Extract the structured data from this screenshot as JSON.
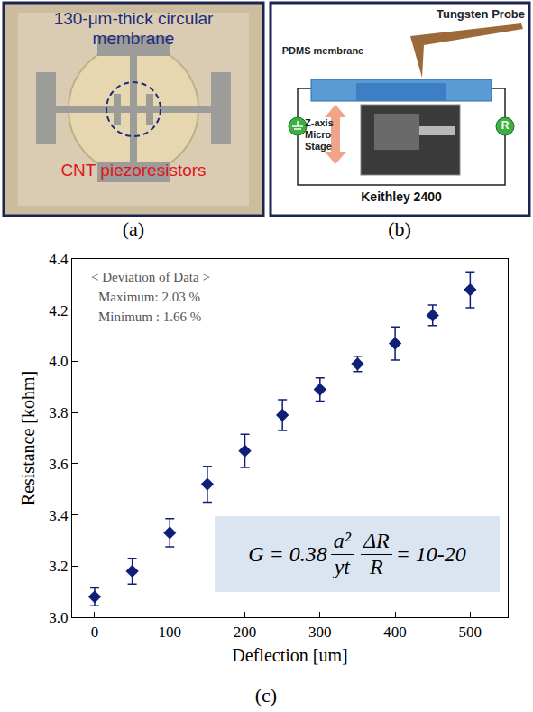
{
  "panel_a": {
    "label": "(a)",
    "membrane_text": "130-μm-thick circular membrane",
    "piezo_text": "CNT piezoresistors"
  },
  "panel_b": {
    "label": "(b)",
    "probe": "Tungsten Probe",
    "membrane": "PDMS membrane",
    "stage": "Z-axis Micro Stage",
    "instrument": "Keithley 2400",
    "meter": "R"
  },
  "panel_c": {
    "label": "(c)",
    "formula": {
      "prefix": "G = 0.38",
      "fractions": [
        {
          "numerator": "a²",
          "denominator": "yt"
        },
        {
          "numerator": "ΔR",
          "denominator": "R"
        }
      ],
      "suffix": "= 10-20"
    }
  },
  "chart_data": {
    "type": "scatter",
    "marker": "diamond",
    "color": "#0f1f78",
    "x_label": "Deflection [um]",
    "y_label": "Resistance [kohm]",
    "annotations": [
      "< Deviation of Data >",
      "Maximum: 2.03 %",
      "Minimum : 1.66 %"
    ],
    "x": [
      0,
      50,
      100,
      150,
      200,
      250,
      300,
      350,
      400,
      450,
      500
    ],
    "values": [
      3.08,
      3.18,
      3.33,
      3.52,
      3.65,
      3.79,
      3.89,
      3.99,
      4.07,
      4.18,
      4.28
    ],
    "errors": [
      0.035,
      0.05,
      0.055,
      0.07,
      0.065,
      0.06,
      0.045,
      0.03,
      0.065,
      0.04,
      0.07
    ],
    "xlim": [
      -30,
      550
    ],
    "xticks": [
      0,
      100,
      200,
      300,
      400,
      500
    ],
    "ylim": [
      3.0,
      4.4
    ],
    "yticks": [
      {
        "value": 3.0,
        "label": "3.0"
      },
      3.2,
      3.4,
      3.6,
      3.8,
      {
        "value": 4.0,
        "label": "4.0"
      },
      4.2,
      4.4
    ],
    "grid": false
  }
}
